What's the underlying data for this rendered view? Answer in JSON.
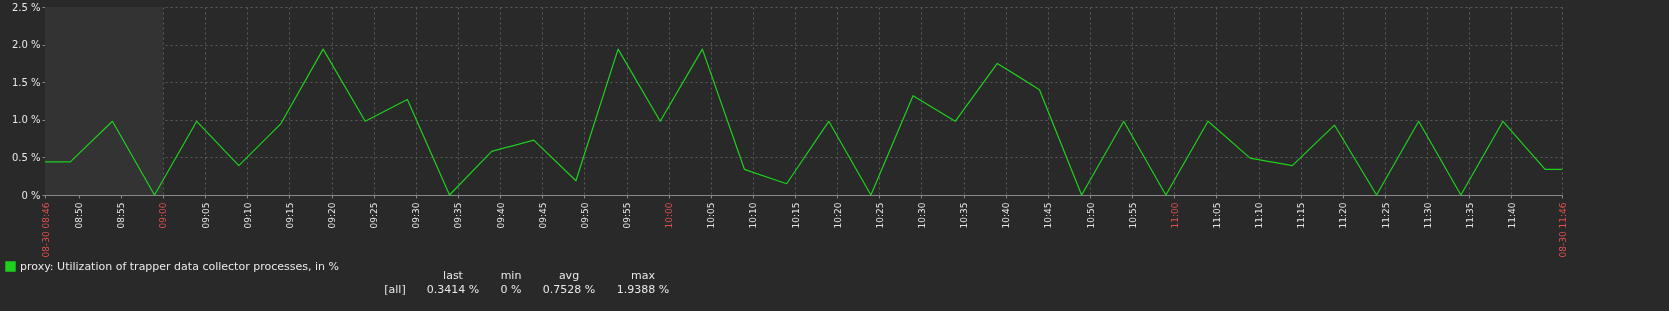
{
  "chart_data": {
    "type": "line",
    "x": [
      8.7667,
      8.8167,
      8.9,
      8.9833,
      9.0667,
      9.15,
      9.2333,
      9.3167,
      9.4,
      9.4833,
      9.5667,
      9.65,
      9.7333,
      9.8167,
      9.9,
      9.9833,
      10.0667,
      10.15,
      10.2333,
      10.3167,
      10.4,
      10.4833,
      10.5667,
      10.65,
      10.7333,
      10.8167,
      10.9,
      10.9833,
      11.0667,
      11.15,
      11.2333,
      11.3167,
      11.4,
      11.4833,
      11.5667,
      11.65,
      11.7333,
      11.7667
    ],
    "series": [
      {
        "name": "proxy: Utilization of trapper data collector processes, in %",
        "color": "#1fd01f",
        "values": [
          0.44,
          0.44,
          0.98,
          0,
          0.98,
          0.39,
          0.95,
          1.94,
          0.98,
          1.27,
          0,
          0.58,
          0.73,
          0.19,
          1.94,
          0.98,
          1.94,
          0.34,
          0.15,
          0.98,
          0,
          1.32,
          0.98,
          1.75,
          1.4,
          0,
          0.98,
          0,
          0.98,
          0.49,
          0.39,
          0.93,
          0,
          0.98,
          0,
          0.98,
          0.34,
          0.34
        ]
      }
    ],
    "xlim": [
      8.7667,
      11.7667
    ],
    "xticks": [
      {
        "value": 8.7667,
        "label": "08-30 08:46"
      },
      {
        "value": 8.8333,
        "label": "08:50"
      },
      {
        "value": 8.9167,
        "label": "08:55"
      },
      {
        "value": 9,
        "label": "09:00"
      },
      {
        "value": 9.0833,
        "label": "09:05"
      },
      {
        "value": 9.1667,
        "label": "09:10"
      },
      {
        "value": 9.25,
        "label": "09:15"
      },
      {
        "value": 9.3333,
        "label": "09:20"
      },
      {
        "value": 9.4167,
        "label": "09:25"
      },
      {
        "value": 9.5,
        "label": "09:30"
      },
      {
        "value": 9.5833,
        "label": "09:35"
      },
      {
        "value": 9.6667,
        "label": "09:40"
      },
      {
        "value": 9.75,
        "label": "09:45"
      },
      {
        "value": 9.8333,
        "label": "09:50"
      },
      {
        "value": 9.9167,
        "label": "09:55"
      },
      {
        "value": 10,
        "label": "10:00"
      },
      {
        "value": 10.0833,
        "label": "10:05"
      },
      {
        "value": 10.1667,
        "label": "10:10"
      },
      {
        "value": 10.25,
        "label": "10:15"
      },
      {
        "value": 10.3333,
        "label": "10:20"
      },
      {
        "value": 10.4167,
        "label": "10:25"
      },
      {
        "value": 10.5,
        "label": "10:30"
      },
      {
        "value": 10.5833,
        "label": "10:35"
      },
      {
        "value": 10.6667,
        "label": "10:40"
      },
      {
        "value": 10.75,
        "label": "10:45"
      },
      {
        "value": 10.8333,
        "label": "10:50"
      },
      {
        "value": 10.9167,
        "label": "10:55"
      },
      {
        "value": 11,
        "label": "11:00"
      },
      {
        "value": 11.0833,
        "label": "11:05"
      },
      {
        "value": 11.1667,
        "label": "11:10"
      },
      {
        "value": 11.25,
        "label": "11:15"
      },
      {
        "value": 11.3333,
        "label": "11:20"
      },
      {
        "value": 11.4167,
        "label": "11:25"
      },
      {
        "value": 11.5,
        "label": "11:30"
      },
      {
        "value": 11.5833,
        "label": "11:35"
      },
      {
        "value": 11.6667,
        "label": "11:40"
      },
      {
        "value": 11.7667,
        "label": "08-30 11:46"
      }
    ],
    "ylim": [
      0,
      2.5
    ],
    "yticks": [
      {
        "value": 0,
        "label": "0 %"
      },
      {
        "value": 0.5,
        "label": "0.5 %"
      },
      {
        "value": 1,
        "label": "1.0 %"
      },
      {
        "value": 1.5,
        "label": "1.5 %"
      },
      {
        "value": 2,
        "label": "2.0 %"
      },
      {
        "value": 2.5,
        "label": "2.5 %"
      }
    ],
    "bands": [
      {
        "axis": "x",
        "from": 8.7667,
        "to": 9,
        "color": "#333333"
      }
    ],
    "grid": true,
    "legend": "bottom",
    "annotations": [
      "last",
      "min",
      "avg",
      "max",
      "[all]",
      "0.3414 %",
      "0 %",
      "0.7528 %",
      "1.9388 %"
    ]
  }
}
